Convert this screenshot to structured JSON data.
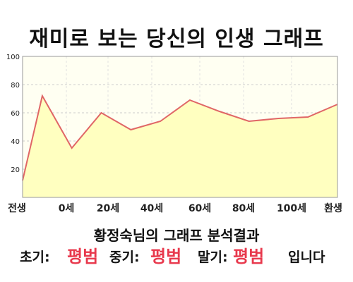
{
  "title": "재미로 보는 당신의 인생 그래프",
  "chart_data": {
    "type": "area",
    "x": [
      0,
      5,
      12.5,
      20,
      27.5,
      35,
      42.5,
      50,
      57.5,
      65,
      72.5,
      80
    ],
    "values": [
      12,
      72,
      35,
      60,
      48,
      54,
      69,
      61,
      54,
      56,
      57,
      66
    ],
    "ylim": [
      0,
      100
    ],
    "yticks": [
      20,
      40,
      60,
      80,
      100
    ],
    "x_tick_labels": [
      "전생",
      "0세",
      "20세",
      "40세",
      "60세",
      "80세",
      "100세",
      "환생"
    ],
    "grid": true,
    "fill_color": "#ffffc0",
    "line_color": "#e06666"
  },
  "result": {
    "title": "황정숙님의 그래프 분석결과",
    "early_label": "초기:",
    "early_value": "평범",
    "mid_label": "중기:",
    "mid_value": "평범",
    "late_label": "말기:",
    "late_value": "평범",
    "suffix": "입니다"
  }
}
